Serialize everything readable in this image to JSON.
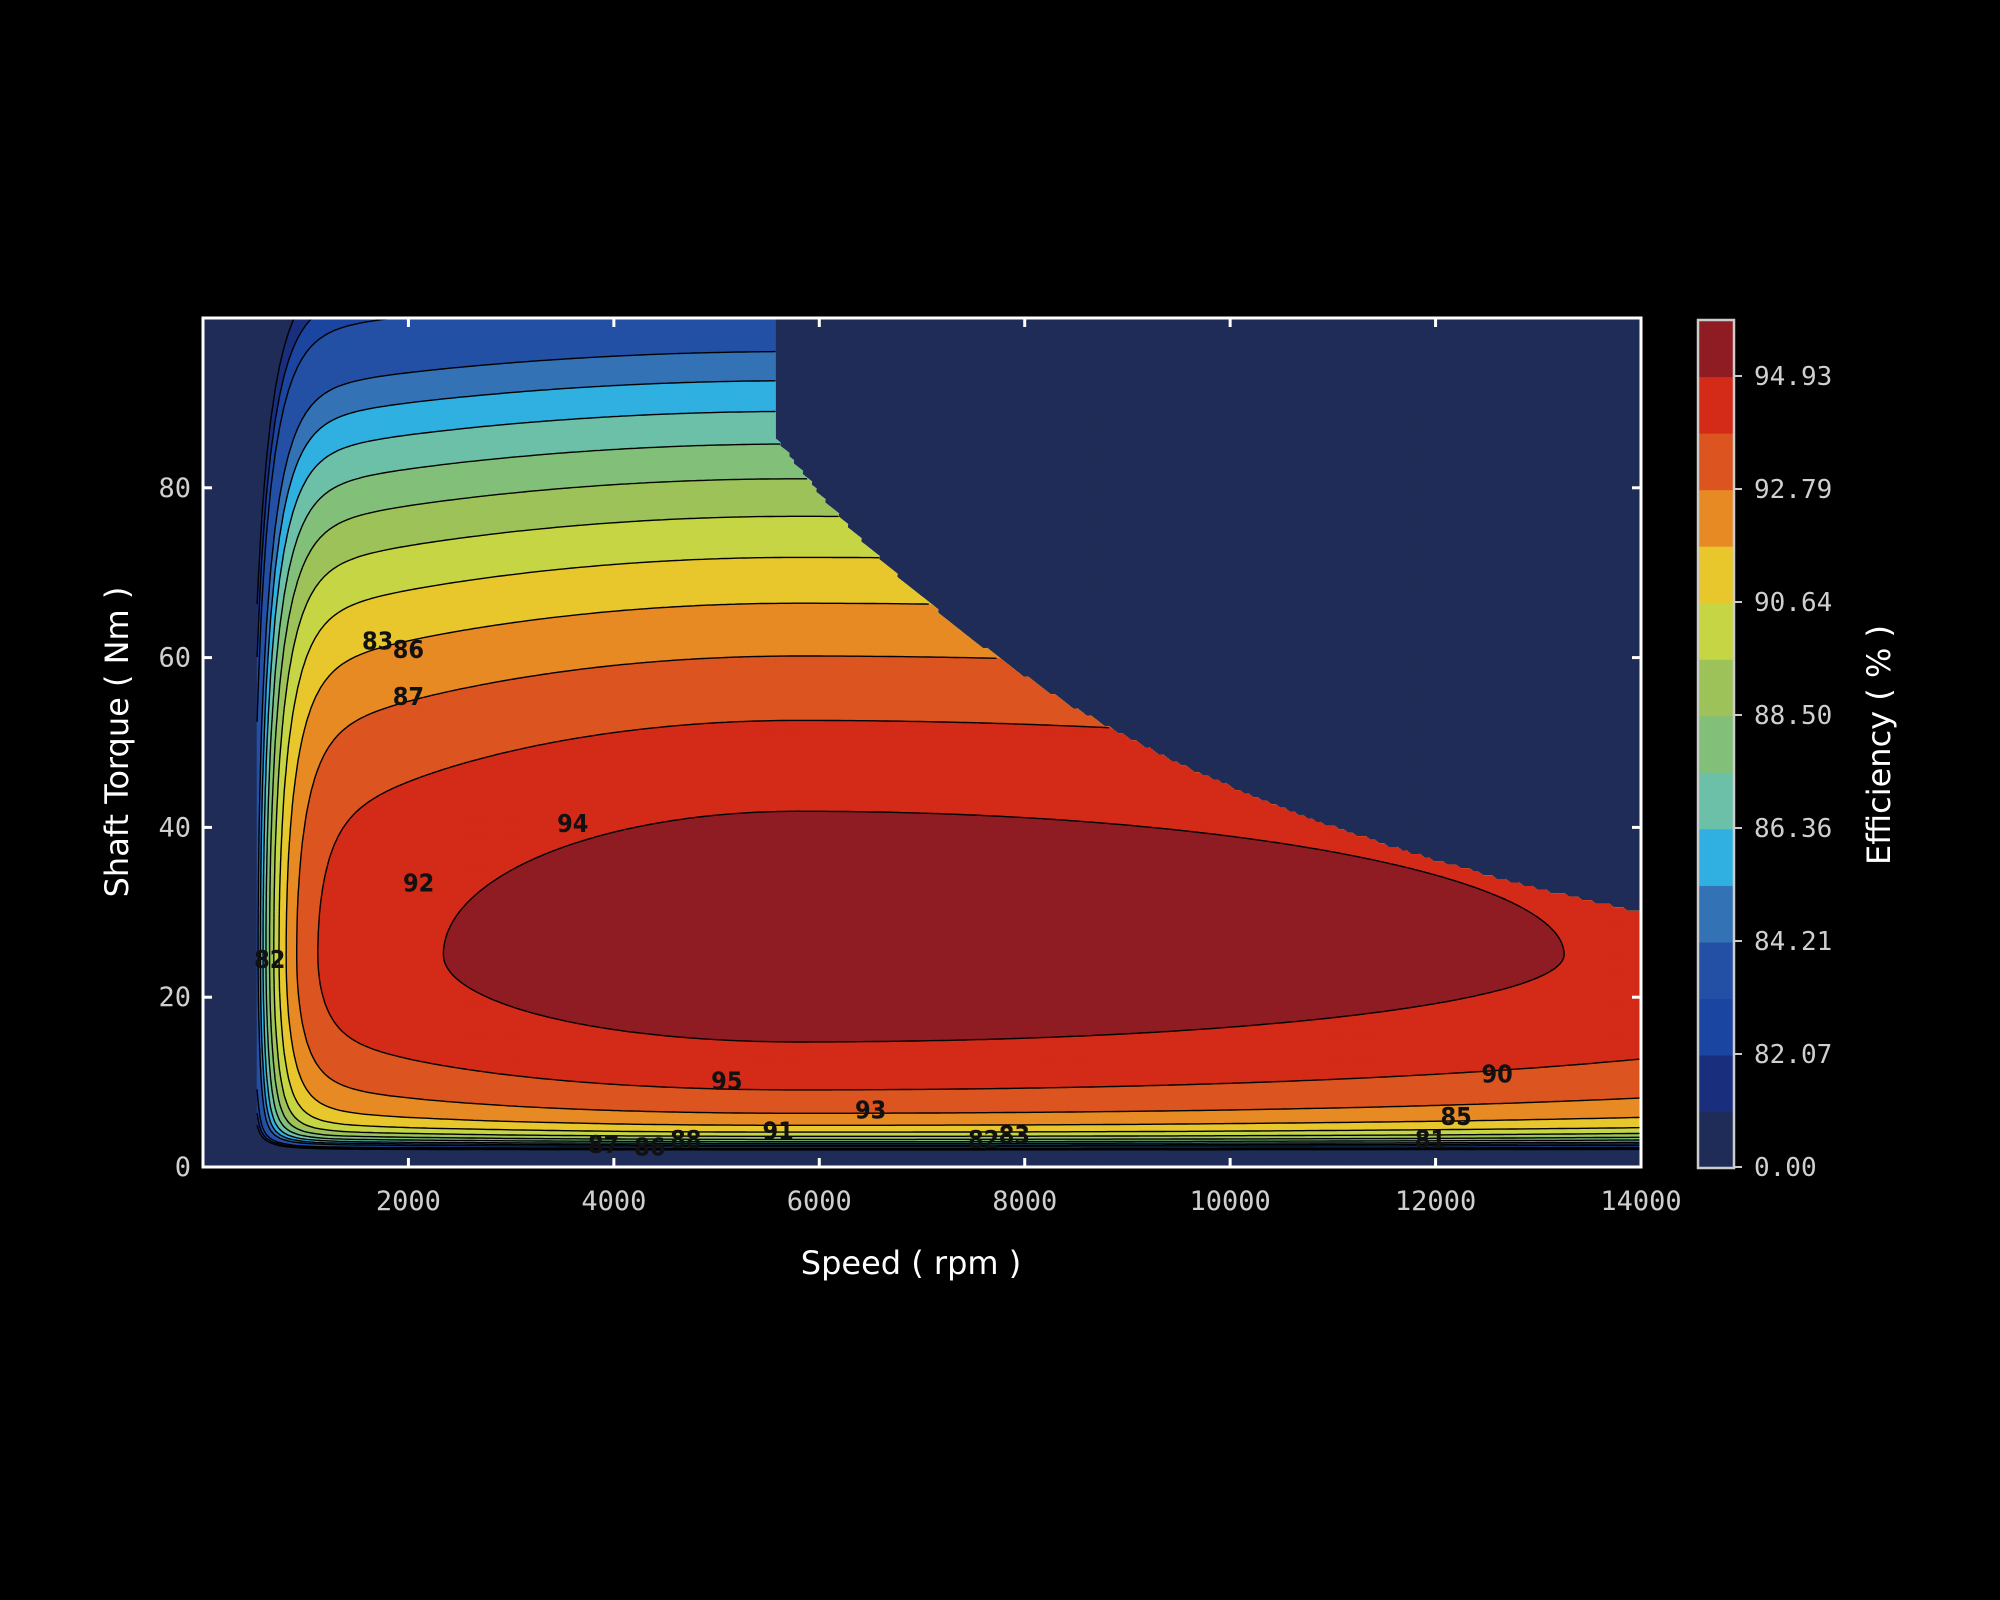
{
  "chart_data": {
    "type": "heatmap",
    "subtype": "filled-contour",
    "title": "",
    "xlabel": "Speed ( rpm )",
    "ylabel": "Shaft Torque ( Nm )",
    "colorbar_label": "Efficiency ( % )",
    "xlim": [
      0,
      14000
    ],
    "ylim": [
      0,
      100
    ],
    "x_ticks": [
      2000,
      4000,
      6000,
      8000,
      10000,
      12000,
      14000
    ],
    "x_tick_labels": [
      "2000",
      "4000",
      "6000",
      "8000",
      "10000",
      "12000",
      "14000"
    ],
    "y_ticks": [
      0,
      20,
      40,
      60,
      80
    ],
    "y_tick_labels": [
      "0",
      "20",
      "40",
      "60",
      "80"
    ],
    "colorbar_ticks": [
      "94.93",
      "92.79",
      "90.64",
      "88.50",
      "86.36",
      "84.21",
      "82.07",
      "0.00"
    ],
    "colorbar_colors": [
      "#1e2c57",
      "#1a2e7e",
      "#1a45a0",
      "#2350a5",
      "#3472b6",
      "#2fb0e1",
      "#6cc0a8",
      "#82c07a",
      "#9dc259",
      "#c6d544",
      "#e8c72c",
      "#e78a24",
      "#dc5420",
      "#d42a18",
      "#8e1c22"
    ],
    "background_color": "#000000",
    "frame_color": "#ffffff",
    "grid": false,
    "legend": "colorbar-right",
    "efficiency_levels": [
      {
        "level": 81,
        "color": "#1a2e7e"
      },
      {
        "level": 82,
        "color": "#1a45a0"
      },
      {
        "level": 83,
        "color": "#2350a5"
      },
      {
        "level": 85,
        "color": "#3472b6"
      },
      {
        "level": 86,
        "color": "#2fb0e1"
      },
      {
        "level": 87,
        "color": "#6cc0a8"
      },
      {
        "level": 88,
        "color": "#82c07a"
      },
      {
        "level": 89,
        "color": "#9dc259"
      },
      {
        "level": 90,
        "color": "#c6d544"
      },
      {
        "level": 91,
        "color": "#e8c72c"
      },
      {
        "level": 92,
        "color": "#e78a24"
      },
      {
        "level": 93,
        "color": "#dc5420"
      },
      {
        "level": 94,
        "color": "#d42a18"
      },
      {
        "level": 95,
        "color": "#8e1c22"
      }
    ],
    "contour_labels": [
      {
        "text": "83",
        "x": 1700,
        "y": 62
      },
      {
        "text": "86",
        "x": 2000,
        "y": 61
      },
      {
        "text": "87",
        "x": 2000,
        "y": 55.5
      },
      {
        "text": "94",
        "x": 3600,
        "y": 40.5
      },
      {
        "text": "92",
        "x": 2100,
        "y": 33.5
      },
      {
        "text": "82",
        "x": 650,
        "y": 24.5
      },
      {
        "text": "95",
        "x": 5100,
        "y": 10.2
      },
      {
        "text": "93",
        "x": 6500,
        "y": 6.8
      },
      {
        "text": "90",
        "x": 12600,
        "y": 11
      },
      {
        "text": "85",
        "x": 12200,
        "y": 6
      },
      {
        "text": "81",
        "x": 11950,
        "y": 3.3
      },
      {
        "text": "87",
        "x": 3900,
        "y": 2.7
      },
      {
        "text": "86",
        "x": 4350,
        "y": 2.4
      },
      {
        "text": "88",
        "x": 4700,
        "y": 3.3
      },
      {
        "text": "91",
        "x": 5600,
        "y": 4.3
      },
      {
        "text": "82",
        "x": 7600,
        "y": 3.3
      },
      {
        "text": "83",
        "x": 7900,
        "y": 3.8
      }
    ]
  }
}
